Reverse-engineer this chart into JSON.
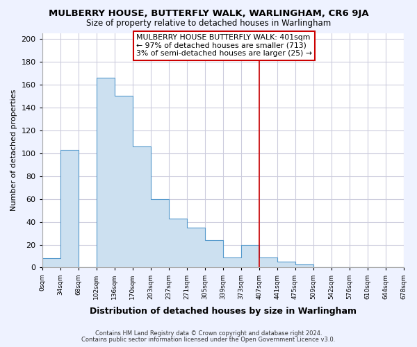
{
  "title": "MULBERRY HOUSE, BUTTERFLY WALK, WARLINGHAM, CR6 9JA",
  "subtitle": "Size of property relative to detached houses in Warlingham",
  "xlabel": "Distribution of detached houses by size in Warlingham",
  "ylabel": "Number of detached properties",
  "bar_fill_color": "#cce0f0",
  "bar_edge_color": "#5599cc",
  "grid_color": "#ccccdd",
  "background_color": "#eef2ff",
  "plot_bg_color": "#ffffff",
  "bin_labels": [
    "0sqm",
    "34sqm",
    "68sqm",
    "102sqm",
    "136sqm",
    "170sqm",
    "203sqm",
    "237sqm",
    "271sqm",
    "305sqm",
    "339sqm",
    "373sqm",
    "407sqm",
    "441sqm",
    "475sqm",
    "509sqm",
    "542sqm",
    "576sqm",
    "610sqm",
    "644sqm",
    "678sqm"
  ],
  "bar_heights": [
    8,
    103,
    0,
    166,
    150,
    106,
    60,
    43,
    35,
    24,
    9,
    20,
    9,
    5,
    3,
    0,
    0,
    0,
    0,
    0
  ],
  "vline_x_index": 12,
  "vline_color": "#cc0000",
  "annotation_text": "MULBERRY HOUSE BUTTERFLY WALK: 401sqm\n← 97% of detached houses are smaller (713)\n3% of semi-detached houses are larger (25) →",
  "annotation_box_color": "#ffffff",
  "annotation_box_edge_color": "#cc0000",
  "ylim": [
    0,
    205
  ],
  "yticks": [
    0,
    20,
    40,
    60,
    80,
    100,
    120,
    140,
    160,
    180,
    200
  ],
  "footnote1": "Contains HM Land Registry data © Crown copyright and database right 2024.",
  "footnote2": "Contains public sector information licensed under the Open Government Licence v3.0."
}
